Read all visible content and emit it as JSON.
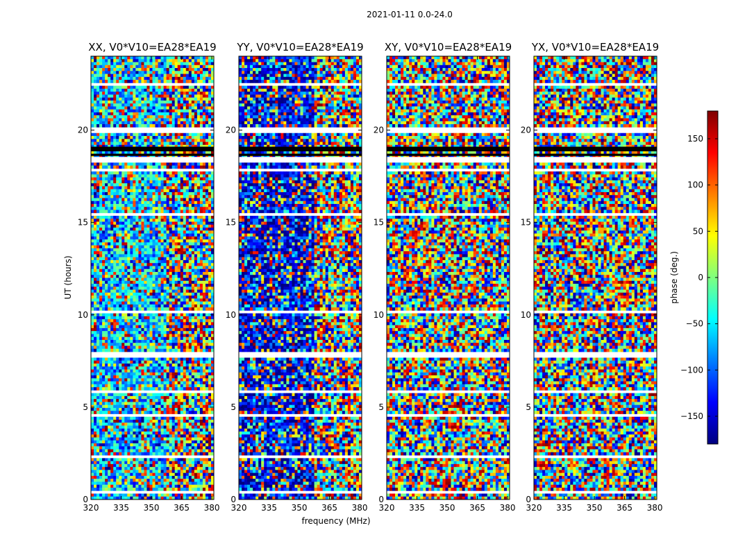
{
  "figure": {
    "suptitle": "2021-01-11 0.0-24.0",
    "xlabel": "frequency (MHz)",
    "ylabel": "UT (hours)"
  },
  "colorbar": {
    "label": "phase (deg.)",
    "ticks": [
      150,
      100,
      50,
      0,
      -50,
      -100,
      -150
    ],
    "tick_labels": [
      "150",
      "100",
      "50",
      "0",
      "−50",
      "−100",
      "−150"
    ],
    "range": [
      -180,
      180
    ],
    "colormap": "jet",
    "colors": [
      "#00007f",
      "#0000ff",
      "#007fff",
      "#00ffff",
      "#7fff7f",
      "#ffff00",
      "#ff7f00",
      "#ff0000",
      "#7f0000"
    ]
  },
  "chart_data": [
    {
      "type": "heatmap",
      "title": "XX, V0*V10=EA28*EA19",
      "xlabel": "",
      "ylabel": "UT (hours)",
      "xlim": [
        320,
        381
      ],
      "ylim": [
        0,
        24
      ],
      "xticks": [
        320,
        335,
        350,
        365,
        380
      ],
      "yticks": [
        0,
        5,
        10,
        15,
        20
      ],
      "value": "phase (deg.)"
    },
    {
      "type": "heatmap",
      "title": "YY, V0*V10=EA28*EA19",
      "xlabel": "frequency (MHz)",
      "ylabel": "",
      "xlim": [
        320,
        381
      ],
      "ylim": [
        0,
        24
      ],
      "xticks": [
        320,
        335,
        350,
        365,
        380
      ],
      "yticks": [
        0,
        5,
        10,
        15,
        20
      ],
      "value": "phase (deg.)"
    },
    {
      "type": "heatmap",
      "title": "XY, V0*V10=EA28*EA19",
      "xlabel": "",
      "ylabel": "",
      "xlim": [
        320,
        381
      ],
      "ylim": [
        0,
        24
      ],
      "xticks": [
        320,
        335,
        350,
        365,
        380
      ],
      "yticks": [
        0,
        5,
        10,
        15,
        20
      ],
      "value": "phase (deg.)"
    },
    {
      "type": "heatmap",
      "title": "YX, V0*V10=EA28*EA19",
      "xlabel": "",
      "ylabel": "",
      "xlim": [
        320,
        381
      ],
      "ylim": [
        0,
        24
      ],
      "xticks": [
        320,
        335,
        350,
        365,
        380
      ],
      "yticks": [
        0,
        5,
        10,
        15,
        20
      ],
      "value": "phase (deg.)"
    }
  ]
}
